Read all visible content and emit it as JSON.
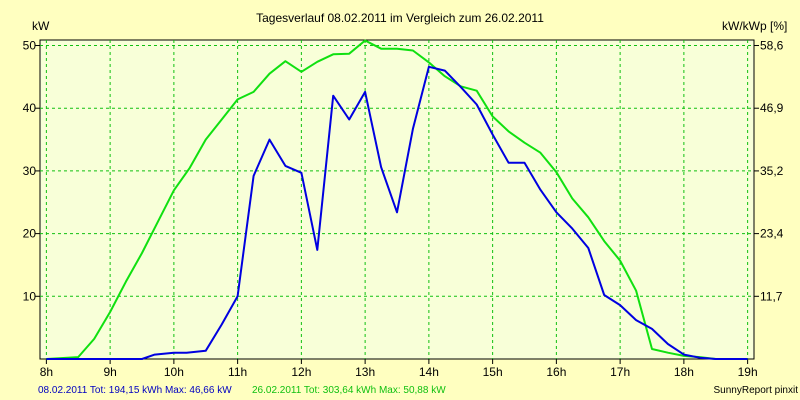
{
  "chart_data": {
    "type": "line",
    "title": "Tagesverlauf 08.02.2011 im Vergleich zum 26.02.2011",
    "ylabel_left": "kW",
    "ylabel_right": "kW/kWp [%]",
    "xlim": [
      7.9,
      19.1
    ],
    "ylim": [
      0,
      50.88
    ],
    "x_ticks": [
      {
        "value": 8,
        "label": "8h"
      },
      {
        "value": 9,
        "label": "9h"
      },
      {
        "value": 10,
        "label": "10h"
      },
      {
        "value": 11,
        "label": "11h"
      },
      {
        "value": 12,
        "label": "12h"
      },
      {
        "value": 13,
        "label": "13h"
      },
      {
        "value": 14,
        "label": "14h"
      },
      {
        "value": 15,
        "label": "15h"
      },
      {
        "value": 16,
        "label": "16h"
      },
      {
        "value": 17,
        "label": "17h"
      },
      {
        "value": 18,
        "label": "18h"
      },
      {
        "value": 19,
        "label": "19h"
      }
    ],
    "y_left_ticks": [
      {
        "value": 10,
        "label": "10"
      },
      {
        "value": 20,
        "label": "20"
      },
      {
        "value": 30,
        "label": "30"
      },
      {
        "value": 40,
        "label": "40"
      },
      {
        "value": 50,
        "label": "50"
      }
    ],
    "y_right_ticks": [
      {
        "value": 10,
        "label": "11,7"
      },
      {
        "value": 20,
        "label": "23,4"
      },
      {
        "value": 30,
        "label": "35,2"
      },
      {
        "value": 40,
        "label": "46,9"
      },
      {
        "value": 50,
        "label": "58,6"
      }
    ],
    "grid": true,
    "series": [
      {
        "name": "08.02.2011",
        "color": "#0000e0",
        "x": [
          8.0,
          9.0,
          9.5,
          9.7,
          10.0,
          10.2,
          10.5,
          10.75,
          11.0,
          11.25,
          11.5,
          11.75,
          12.0,
          12.25,
          12.5,
          12.75,
          13.0,
          13.25,
          13.5,
          13.75,
          14.0,
          14.25,
          14.5,
          14.75,
          15.0,
          15.25,
          15.5,
          15.75,
          16.0,
          16.25,
          16.5,
          16.75,
          17.0,
          17.25,
          17.5,
          17.75,
          18.0,
          18.25,
          18.5,
          19.0
        ],
        "y": [
          0,
          0,
          0,
          0.7,
          1.0,
          1.0,
          1.3,
          5.5,
          10.0,
          29.2,
          35.0,
          30.8,
          29.7,
          17.4,
          42.0,
          38.2,
          42.6,
          30.6,
          23.4,
          36.7,
          46.6,
          46.0,
          43.4,
          40.6,
          35.8,
          31.3,
          31.3,
          27.0,
          23.4,
          20.8,
          17.7,
          10.2,
          8.6,
          6.2,
          4.8,
          2.4,
          0.7,
          0.2,
          0,
          0
        ]
      },
      {
        "name": "26.02.2011",
        "color": "#10e010",
        "x": [
          8.0,
          8.5,
          8.75,
          9.0,
          9.25,
          9.5,
          9.75,
          10.0,
          10.25,
          10.5,
          10.75,
          11.0,
          11.25,
          11.5,
          11.75,
          12.0,
          12.25,
          12.5,
          12.75,
          13.0,
          13.25,
          13.5,
          13.75,
          14.0,
          14.25,
          14.5,
          14.75,
          15.0,
          15.25,
          15.5,
          15.75,
          16.0,
          16.25,
          16.5,
          16.75,
          17.0,
          17.25,
          17.5,
          17.75,
          18.0,
          18.25,
          18.5,
          19.0
        ],
        "y": [
          0,
          0.3,
          3.2,
          7.5,
          12.4,
          16.9,
          21.9,
          26.9,
          30.5,
          35.0,
          38.2,
          41.4,
          42.6,
          45.5,
          47.5,
          45.8,
          47.4,
          48.6,
          48.7,
          50.8,
          49.5,
          49.5,
          49.2,
          47.3,
          45.1,
          43.5,
          42.8,
          38.7,
          36.3,
          34.5,
          32.9,
          29.8,
          25.6,
          22.6,
          18.8,
          15.7,
          10.9,
          1.6,
          1.0,
          0.5,
          0.3,
          0,
          0
        ]
      }
    ]
  },
  "footer": {
    "series1_stats": "08.02.2011 Tot: 194,15 kWh Max: 46,66 kW",
    "series2_stats": "26.02.2011 Tot: 303,64 kWh Max: 50,88 kW",
    "credit": "SunnyReport pinxit"
  },
  "colors": {
    "background": "#ffffc0",
    "plot_background": "#f8ffd8",
    "grid": "#10c010",
    "series1": "#0000e0",
    "series2": "#10e010",
    "footer_series1": "#0000c0",
    "footer_series2": "#10c010"
  }
}
